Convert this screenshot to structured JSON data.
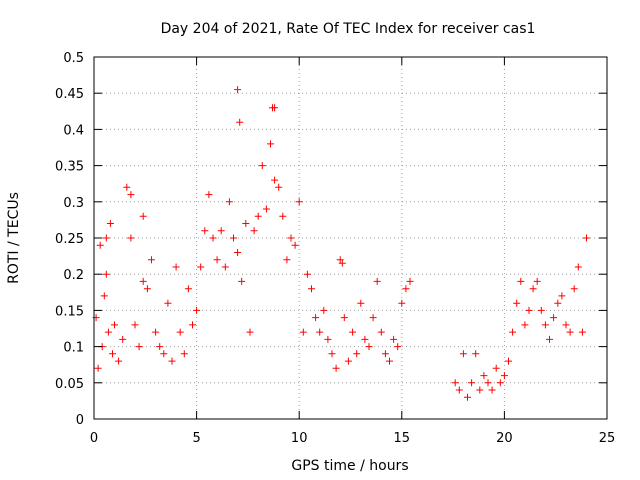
{
  "chart_data": {
    "type": "scatter",
    "title": "Day 204 of 2021, Rate Of TEC Index for receiver cas1",
    "xlabel": "GPS time / hours",
    "ylabel": "ROTI / TECUs",
    "xlim": [
      0,
      25
    ],
    "ylim": [
      0,
      0.5
    ],
    "x_ticks": [
      0,
      5,
      10,
      15,
      20,
      25
    ],
    "x_tick_labels": [
      "0",
      "5",
      "10",
      "15",
      "20",
      "25"
    ],
    "y_ticks": [
      0,
      0.05,
      0.1,
      0.15,
      0.2,
      0.25,
      0.3,
      0.35,
      0.4,
      0.45,
      0.5
    ],
    "y_tick_labels": [
      "0",
      "0.05",
      "0.1",
      "0.15",
      "0.2",
      "0.25",
      "0.3",
      "0.35",
      "0.4",
      "0.45",
      "0.5"
    ],
    "grid": true,
    "marker": "+",
    "marker_color": "#ff0000",
    "series": [
      {
        "x": [
          0.1,
          0.2,
          0.3,
          0.4,
          0.5,
          0.6,
          0.7,
          0.8,
          0.9,
          1.0,
          1.2,
          1.4,
          1.6,
          1.8,
          2.0,
          2.2,
          2.4,
          2.6,
          2.8,
          3.0,
          3.2,
          3.4,
          3.6,
          3.8,
          4.0,
          4.2,
          4.4,
          4.6,
          4.8,
          5.0,
          5.2,
          5.4,
          5.6,
          5.8,
          6.0,
          6.2,
          6.4,
          6.6,
          6.8,
          7.0,
          7.2,
          7.4,
          7.6,
          7.8,
          8.0,
          8.2,
          8.4,
          8.6,
          8.8,
          9.0,
          9.2,
          9.4,
          9.6,
          9.8,
          10.0,
          10.2,
          10.4,
          10.6,
          10.8,
          11.0,
          11.2,
          11.4,
          11.6,
          11.8,
          12.0,
          12.2,
          12.4,
          12.6,
          12.8,
          13.0,
          13.2,
          13.4,
          13.6,
          13.8,
          14.0,
          14.2,
          14.4,
          14.6,
          14.8,
          15.0,
          15.2,
          15.4,
          17.6,
          17.8,
          18.0,
          18.2,
          18.4,
          18.6,
          18.8,
          19.0,
          19.2,
          19.4,
          19.6,
          19.8,
          20.0,
          20.2,
          20.4,
          20.6,
          20.8,
          21.0,
          21.2,
          21.4,
          21.6,
          21.8,
          22.0,
          22.2,
          22.4,
          22.6,
          22.8,
          23.0,
          23.2,
          23.4,
          23.6,
          23.8,
          24.0,
          7.0,
          7.1,
          8.7,
          8.8,
          2.4,
          1.8,
          0.6,
          12.1
        ],
        "y": [
          0.14,
          0.07,
          0.24,
          0.1,
          0.17,
          0.2,
          0.12,
          0.27,
          0.09,
          0.13,
          0.08,
          0.11,
          0.32,
          0.25,
          0.13,
          0.1,
          0.28,
          0.18,
          0.22,
          0.12,
          0.1,
          0.09,
          0.16,
          0.08,
          0.21,
          0.12,
          0.09,
          0.18,
          0.13,
          0.15,
          0.21,
          0.26,
          0.31,
          0.25,
          0.22,
          0.26,
          0.21,
          0.3,
          0.25,
          0.23,
          0.19,
          0.27,
          0.12,
          0.26,
          0.28,
          0.35,
          0.29,
          0.38,
          0.33,
          0.32,
          0.28,
          0.22,
          0.25,
          0.24,
          0.3,
          0.12,
          0.2,
          0.18,
          0.14,
          0.12,
          0.15,
          0.11,
          0.09,
          0.07,
          0.22,
          0.14,
          0.08,
          0.12,
          0.09,
          0.16,
          0.11,
          0.1,
          0.14,
          0.19,
          0.12,
          0.09,
          0.08,
          0.11,
          0.1,
          0.16,
          0.18,
          0.19,
          0.05,
          0.04,
          0.09,
          0.03,
          0.05,
          0.09,
          0.04,
          0.06,
          0.05,
          0.04,
          0.07,
          0.05,
          0.06,
          0.08,
          0.12,
          0.16,
          0.19,
          0.13,
          0.15,
          0.18,
          0.19,
          0.15,
          0.13,
          0.11,
          0.14,
          0.16,
          0.17,
          0.13,
          0.12,
          0.18,
          0.21,
          0.12,
          0.25,
          0.455,
          0.41,
          0.43,
          0.43,
          0.19,
          0.31,
          0.25,
          0.215
        ]
      }
    ]
  }
}
